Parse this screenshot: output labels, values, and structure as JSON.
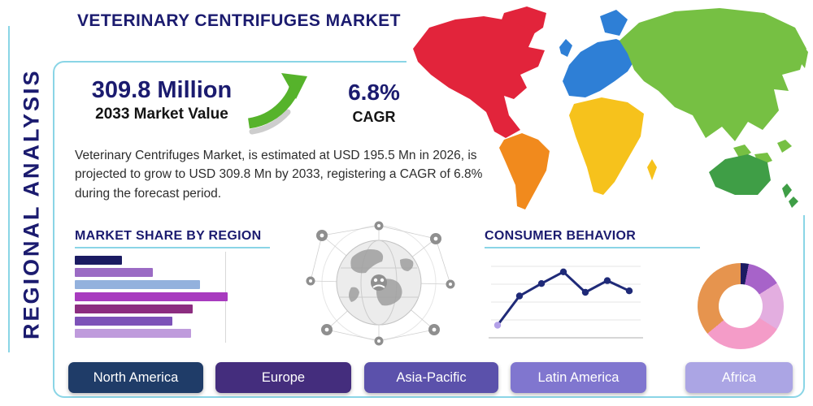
{
  "page": {
    "title": "VETERINARY CENTRIFUGES MARKET",
    "side_label": "REGIONAL ANALYSIS"
  },
  "stats": {
    "market_value": "309.8 Million",
    "market_value_label": "2033 Market Value",
    "cagr_value": "6.8%",
    "cagr_label": "CAGR",
    "description": "Veterinary Centrifuges Market, is estimated at USD 195.5 Mn in 2026, is projected to grow to USD 309.8 Mn by 2033, registering a CAGR of 6.8% during the forecast period."
  },
  "sections": {
    "market_share_title": "MARKET SHARE BY REGION",
    "consumer_behavior_title": "CONSUMER BEHAVIOR"
  },
  "regions": [
    {
      "label": "North America",
      "color": "#1f3c68"
    },
    {
      "label": "Europe",
      "color": "#442d7d"
    },
    {
      "label": "Asia-Pacific",
      "color": "#5b51ab"
    },
    {
      "label": "Latin America",
      "color": "#8076cf"
    },
    {
      "label": "Africa",
      "color": "#aba5e4"
    }
  ],
  "theme": {
    "accent_teal": "#8ad5e6",
    "navy": "#1b1b6f",
    "arrow_green": "#56b32b"
  },
  "map": {
    "colors": {
      "north_america": "#e2243b",
      "greenland": "#e2243b",
      "south_america": "#f18a1d",
      "europe": "#2e7fd6",
      "scandinavia": "#2e7fd6",
      "uk": "#2e7fd6",
      "africa": "#f6c21c",
      "madagascar": "#f6c21c",
      "asia": "#76c043",
      "japan": "#76c043",
      "se_asia": "#76c043",
      "australia": "#3f9e46",
      "new_zealand": "#3f9e46"
    }
  },
  "chart_data": [
    {
      "type": "bar",
      "title": "MARKET SHARE BY REGION",
      "orientation": "horizontal",
      "categories": [
        "",
        "",
        "",
        "",
        "",
        "",
        ""
      ],
      "values": [
        31,
        51,
        82,
        100,
        77,
        64,
        76
      ],
      "unit": "relative length, longest bar = 100 (no axis labels shown)",
      "colors": [
        "#1b1b62",
        "#9b6bc4",
        "#93b1dd",
        "#a83bbf",
        "#8c2d80",
        "#7d52b8",
        "#bf9bdc"
      ],
      "grid": true
    },
    {
      "type": "line",
      "title": "CONSUMER BEHAVIOR",
      "x": [
        1,
        2,
        3,
        4,
        5,
        6,
        7
      ],
      "values": [
        15,
        55,
        72,
        88,
        60,
        76,
        62
      ],
      "unit": "relative index 0-100 (no axis labels shown)",
      "line_color": "#1f2a78",
      "point_color": "#1f2a78",
      "first_point_color": "#b3a0e8",
      "grid": true
    },
    {
      "type": "pie",
      "subtype": "donut",
      "slices": [
        {
          "label": "slice-navy",
          "value": 3,
          "color": "#1b1b62"
        },
        {
          "label": "slice-purple",
          "value": 13,
          "color": "#a763c9"
        },
        {
          "label": "slice-lavender-pink",
          "value": 18,
          "color": "#e3aee0"
        },
        {
          "label": "slice-pink",
          "value": 30,
          "color": "#f49cc8"
        },
        {
          "label": "slice-orange",
          "value": 36,
          "color": "#e6944e"
        }
      ],
      "labels_visible": false
    }
  ]
}
